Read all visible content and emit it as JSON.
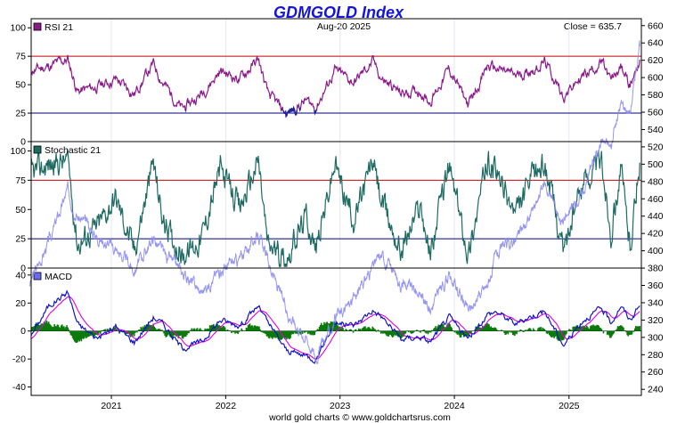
{
  "chart_data": {
    "type": "line",
    "title": "GDMGOLD Index",
    "date_label": "Aug-20  2025",
    "close_label": "Close = 635.7",
    "credit": "world gold charts © www.goldchartsrus.com",
    "x_ticks": [
      "2021",
      "2022",
      "2023",
      "2024",
      "2025"
    ],
    "x_range": [
      "2020-04-20",
      "2025-08-20"
    ],
    "right_axis": {
      "ticks": [
        240,
        260,
        280,
        300,
        320,
        340,
        360,
        380,
        400,
        420,
        440,
        460,
        480,
        500,
        520,
        540,
        560,
        580,
        600,
        620,
        640,
        660
      ],
      "range": [
        233,
        668
      ]
    },
    "price_series": {
      "name": "GDMGOLD Index",
      "color": "#8c8cf2",
      "points": [
        [
          "2020-04",
          362
        ],
        [
          "2020-06",
          410
        ],
        [
          "2020-08",
          470
        ],
        [
          "2020-09",
          440
        ],
        [
          "2020-11",
          418
        ],
        [
          "2021-01",
          402
        ],
        [
          "2021-03",
          378
        ],
        [
          "2021-05",
          415
        ],
        [
          "2021-06",
          398
        ],
        [
          "2021-08",
          375
        ],
        [
          "2021-10",
          352
        ],
        [
          "2021-12",
          378
        ],
        [
          "2022-02",
          390
        ],
        [
          "2022-04",
          420
        ],
        [
          "2022-05",
          388
        ],
        [
          "2022-07",
          330
        ],
        [
          "2022-09",
          300
        ],
        [
          "2022-10",
          278
        ],
        [
          "2022-12",
          318
        ],
        [
          "2023-02",
          345
        ],
        [
          "2023-04",
          382
        ],
        [
          "2023-05",
          395
        ],
        [
          "2023-07",
          362
        ],
        [
          "2023-09",
          352
        ],
        [
          "2023-10",
          332
        ],
        [
          "2023-12",
          372
        ],
        [
          "2024-02",
          330
        ],
        [
          "2024-04",
          360
        ],
        [
          "2024-05",
          395
        ],
        [
          "2024-07",
          412
        ],
        [
          "2024-09",
          450
        ],
        [
          "2024-10",
          478
        ],
        [
          "2024-12",
          432
        ],
        [
          "2025-02",
          470
        ],
        [
          "2025-04",
          530
        ],
        [
          "2025-05",
          520
        ],
        [
          "2025-06",
          570
        ],
        [
          "2025-07",
          562
        ],
        [
          "2025-08",
          636
        ]
      ]
    },
    "panels": [
      {
        "name": "RSI 21",
        "swatch_color": "#8b1a8b",
        "line_color": "#8b1a8b",
        "y_ticks": [
          0,
          25,
          50,
          75,
          100
        ],
        "ylim": [
          0,
          108
        ],
        "levels": [
          {
            "value": 75,
            "color": "#cc0000"
          },
          {
            "value": 25,
            "color": "#000080"
          }
        ],
        "lows_highlight_below": 30,
        "lows_color": "#22229a",
        "points": [
          [
            "2020-04",
            62
          ],
          [
            "2020-06",
            66
          ],
          [
            "2020-08",
            72
          ],
          [
            "2020-09",
            44
          ],
          [
            "2020-11",
            48
          ],
          [
            "2021-01",
            55
          ],
          [
            "2021-03",
            42
          ],
          [
            "2021-05",
            68
          ],
          [
            "2021-06",
            52
          ],
          [
            "2021-08",
            28
          ],
          [
            "2021-10",
            42
          ],
          [
            "2021-12",
            62
          ],
          [
            "2022-02",
            55
          ],
          [
            "2022-04",
            72
          ],
          [
            "2022-05",
            42
          ],
          [
            "2022-07",
            24
          ],
          [
            "2022-09",
            36
          ],
          [
            "2022-10",
            30
          ],
          [
            "2022-12",
            62
          ],
          [
            "2023-02",
            52
          ],
          [
            "2023-04",
            70
          ],
          [
            "2023-05",
            55
          ],
          [
            "2023-07",
            42
          ],
          [
            "2023-09",
            45
          ],
          [
            "2023-10",
            35
          ],
          [
            "2023-12",
            64
          ],
          [
            "2024-02",
            32
          ],
          [
            "2024-04",
            66
          ],
          [
            "2024-05",
            64
          ],
          [
            "2024-07",
            58
          ],
          [
            "2024-09",
            64
          ],
          [
            "2024-10",
            70
          ],
          [
            "2024-12",
            40
          ],
          [
            "2025-02",
            58
          ],
          [
            "2025-04",
            70
          ],
          [
            "2025-05",
            52
          ],
          [
            "2025-06",
            66
          ],
          [
            "2025-07",
            50
          ],
          [
            "2025-08",
            72
          ]
        ]
      },
      {
        "name": "Stochastic 21",
        "swatch_color": "#1e6b63",
        "line_color": "#1e6b63",
        "y_ticks": [
          0,
          25,
          50,
          75,
          100
        ],
        "ylim": [
          0,
          108
        ],
        "levels": [
          {
            "value": 75,
            "color": "#cc0000"
          },
          {
            "value": 25,
            "color": "#000080"
          }
        ],
        "points": [
          [
            "2020-04",
            80
          ],
          [
            "2020-06",
            88
          ],
          [
            "2020-08",
            92
          ],
          [
            "2020-09",
            20
          ],
          [
            "2020-11",
            35
          ],
          [
            "2021-01",
            60
          ],
          [
            "2021-03",
            15
          ],
          [
            "2021-05",
            90
          ],
          [
            "2021-06",
            40
          ],
          [
            "2021-08",
            10
          ],
          [
            "2021-10",
            25
          ],
          [
            "2021-12",
            85
          ],
          [
            "2022-02",
            50
          ],
          [
            "2022-04",
            92
          ],
          [
            "2022-05",
            20
          ],
          [
            "2022-07",
            8
          ],
          [
            "2022-09",
            45
          ],
          [
            "2022-10",
            15
          ],
          [
            "2022-12",
            88
          ],
          [
            "2023-02",
            40
          ],
          [
            "2023-04",
            92
          ],
          [
            "2023-05",
            55
          ],
          [
            "2023-07",
            15
          ],
          [
            "2023-09",
            55
          ],
          [
            "2023-10",
            12
          ],
          [
            "2023-12",
            88
          ],
          [
            "2024-02",
            12
          ],
          [
            "2024-04",
            92
          ],
          [
            "2024-05",
            80
          ],
          [
            "2024-07",
            45
          ],
          [
            "2024-09",
            82
          ],
          [
            "2024-10",
            90
          ],
          [
            "2024-12",
            15
          ],
          [
            "2025-02",
            75
          ],
          [
            "2025-04",
            92
          ],
          [
            "2025-05",
            30
          ],
          [
            "2025-06",
            85
          ],
          [
            "2025-07",
            20
          ],
          [
            "2025-08",
            90
          ]
        ]
      },
      {
        "name": "MACD",
        "swatch_color": "#6a6af0",
        "macd_color": "#1414c8",
        "signal_color": "#e000e0",
        "hist_color": "#0a7a0a",
        "y_ticks": [
          -40,
          -20,
          0,
          20,
          40
        ],
        "ylim": [
          -46,
          45
        ],
        "points": [
          [
            "2020-04",
            -5
          ],
          [
            "2020-06",
            18
          ],
          [
            "2020-08",
            28
          ],
          [
            "2020-09",
            5
          ],
          [
            "2020-11",
            -5
          ],
          [
            "2021-01",
            3
          ],
          [
            "2021-03",
            -8
          ],
          [
            "2021-05",
            10
          ],
          [
            "2021-06",
            5
          ],
          [
            "2021-08",
            -12
          ],
          [
            "2021-10",
            -8
          ],
          [
            "2021-12",
            8
          ],
          [
            "2022-02",
            4
          ],
          [
            "2022-04",
            18
          ],
          [
            "2022-05",
            6
          ],
          [
            "2022-07",
            -14
          ],
          [
            "2022-09",
            -18
          ],
          [
            "2022-10",
            -20
          ],
          [
            "2022-12",
            6
          ],
          [
            "2023-02",
            4
          ],
          [
            "2023-04",
            15
          ],
          [
            "2023-05",
            10
          ],
          [
            "2023-07",
            -6
          ],
          [
            "2023-09",
            -4
          ],
          [
            "2023-10",
            -8
          ],
          [
            "2023-12",
            10
          ],
          [
            "2024-02",
            -6
          ],
          [
            "2024-04",
            12
          ],
          [
            "2024-05",
            14
          ],
          [
            "2024-07",
            5
          ],
          [
            "2024-09",
            12
          ],
          [
            "2024-10",
            14
          ],
          [
            "2024-12",
            -10
          ],
          [
            "2025-02",
            8
          ],
          [
            "2025-04",
            16
          ],
          [
            "2025-05",
            6
          ],
          [
            "2025-06",
            18
          ],
          [
            "2025-07",
            8
          ],
          [
            "2025-08",
            18
          ]
        ]
      }
    ]
  }
}
